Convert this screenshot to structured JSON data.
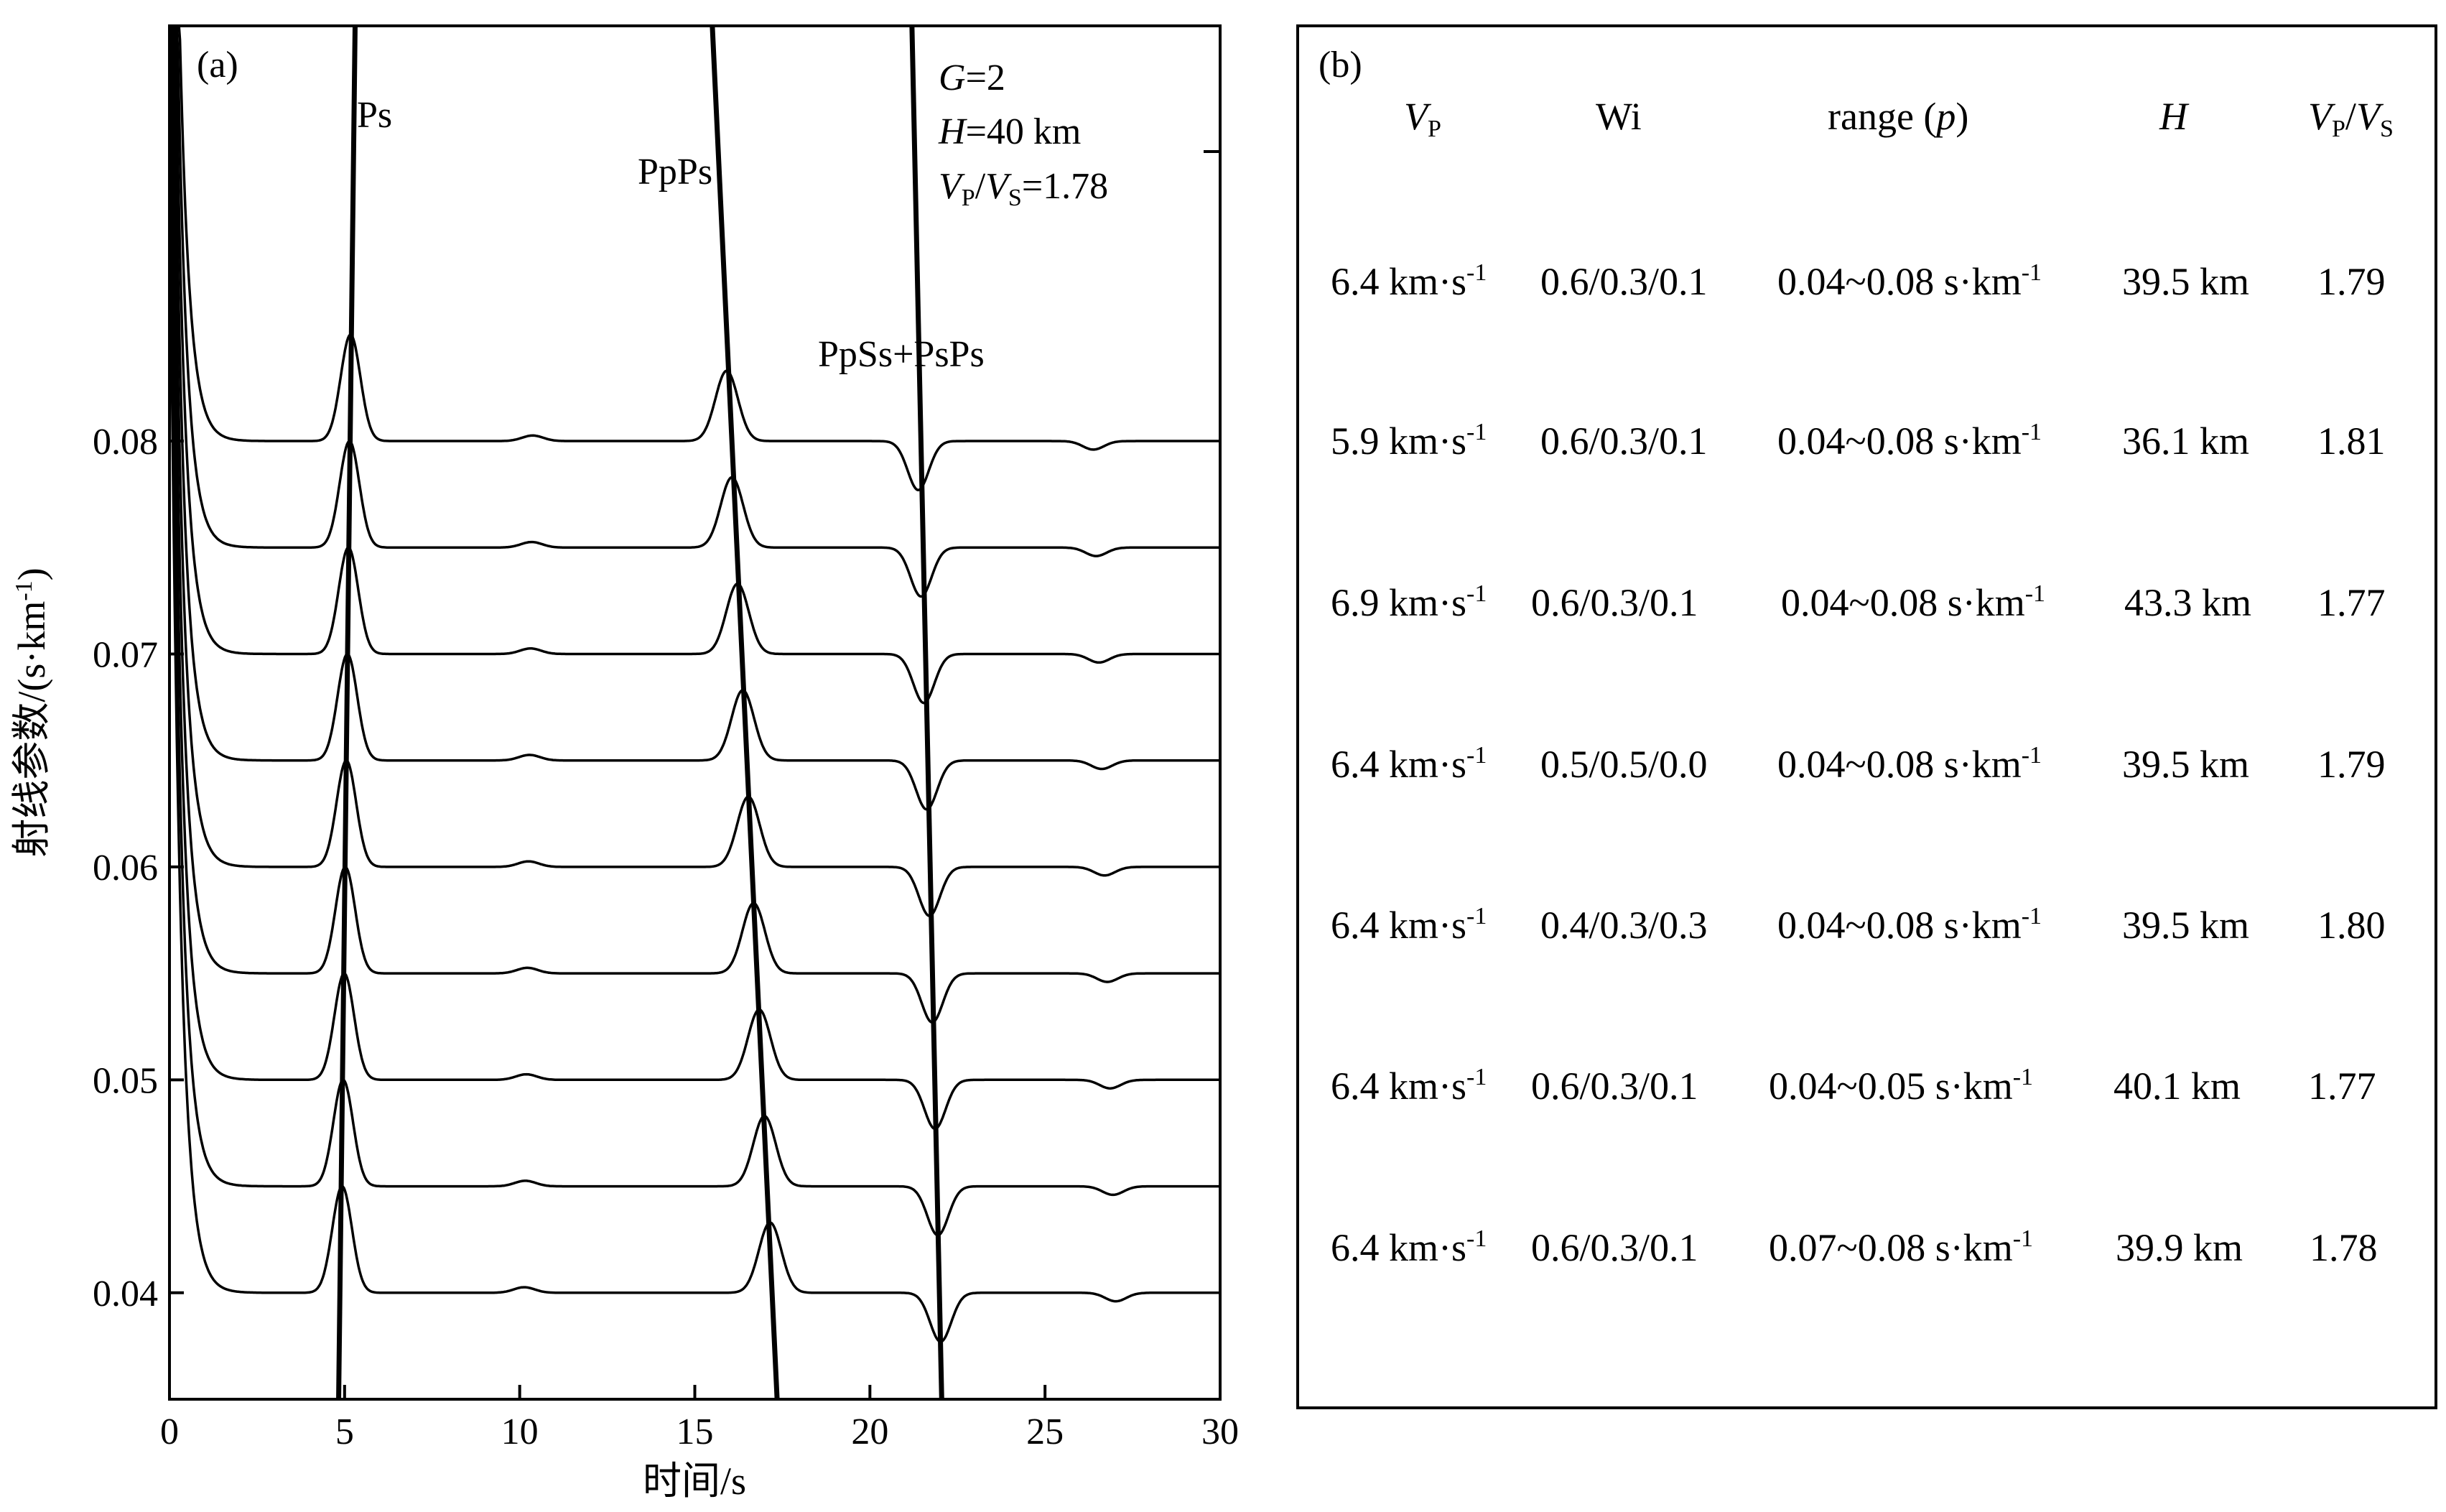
{
  "panel_a": {
    "label": "(a)",
    "xlabel": "时间/s",
    "ylabel": "射线参数/(s·km",
    "ylabel_sup": "-1",
    "ylabel_close": ")",
    "params": {
      "g_sym": "G",
      "g_val": "=2",
      "h_sym": "H",
      "h_val": "=40 km",
      "vp_sym": "V",
      "vp_sub": "P",
      "slash": "/",
      "vs_sym": "V",
      "vs_sub": "S",
      "ratio_val": "=1.78"
    },
    "phase_labels": {
      "ps": "Ps",
      "ppps": "PpPs",
      "ppss": "PpSs+PsPs"
    }
  },
  "chart_data": {
    "type": "line",
    "x_ticks": [
      "0",
      "5",
      "10",
      "15",
      "20",
      "25",
      "30"
    ],
    "y_ticks": [
      "0.04",
      "0.05",
      "0.06",
      "0.07",
      "0.08"
    ],
    "xlim": [
      0,
      30
    ],
    "ylim": [
      0.035,
      0.0995
    ],
    "series_ray_parameters": [
      0.04,
      0.045,
      0.05,
      0.055,
      0.06,
      0.065,
      0.07,
      0.075,
      0.08
    ],
    "arrival_times": {
      "Ps": [
        4.93,
        4.96,
        4.99,
        5.02,
        5.05,
        5.08,
        5.11,
        5.14,
        5.17
      ],
      "PpPs": [
        17.15,
        16.99,
        16.84,
        16.68,
        16.53,
        16.37,
        16.22,
        16.06,
        15.91
      ],
      "PpSs+PsPs": [
        22.02,
        21.94,
        21.86,
        21.78,
        21.7,
        21.62,
        21.54,
        21.46,
        21.38
      ]
    },
    "moveout_lines": {
      "Ps": {
        "x": [
          4.83,
          5.3
        ],
        "y": [
          0.035,
          0.0995
        ]
      },
      "PpPs": {
        "x": [
          17.35,
          15.5
        ],
        "y": [
          0.035,
          0.0995
        ]
      },
      "PpSs+PsPs": {
        "x": [
          22.05,
          21.2
        ],
        "y": [
          0.035,
          0.0995
        ]
      }
    },
    "amplitudes": {
      "Ps": 0.005,
      "PpPs": 0.0033,
      "PpSs+PsPs": -0.0023,
      "small_10s": 0.00026,
      "late_27s": -0.0004
    }
  },
  "panel_b": {
    "label": "(b)",
    "headers": {
      "vp_sym": "V",
      "vp_sub": "P",
      "wi": "Wi",
      "range_pre": "range (",
      "range_p": "p",
      "range_post": ")",
      "h": "H",
      "ratio_v1": "V",
      "ratio_sub1": "P",
      "ratio_slash": "/",
      "ratio_v2": "V",
      "ratio_sub2": "S"
    },
    "unit_sup": "-1",
    "rows": [
      {
        "vp": "6.4 km·s",
        "wi": "0.6/0.3/0.1",
        "range": "0.04~0.08 s·km",
        "h": "39.5 km",
        "ratio": "1.79"
      },
      {
        "vp": "5.9 km·s",
        "wi": "0.6/0.3/0.1",
        "range": "0.04~0.08 s·km",
        "h": "36.1 km",
        "ratio": "1.81"
      },
      {
        "vp": "6.9 km·s",
        "wi": "0.6/0.3/0.1",
        "range": "0.04~0.08 s·km",
        "h": "43.3 km",
        "ratio": "1.77"
      },
      {
        "vp": "6.4 km·s",
        "wi": "0.5/0.5/0.0",
        "range": "0.04~0.08 s·km",
        "h": "39.5 km",
        "ratio": "1.79"
      },
      {
        "vp": "6.4 km·s",
        "wi": "0.4/0.3/0.3",
        "range": "0.04~0.08 s·km",
        "h": "39.5 km",
        "ratio": "1.80"
      },
      {
        "vp": "6.4 km·s",
        "wi": "0.6/0.3/0.1",
        "range": "0.04~0.05 s·km",
        "h": "40.1 km",
        "ratio": "1.77"
      },
      {
        "vp": "6.4 km·s",
        "wi": "0.6/0.3/0.1",
        "range": "0.07~0.08 s·km",
        "h": "39.9 km",
        "ratio": "1.78"
      }
    ]
  }
}
